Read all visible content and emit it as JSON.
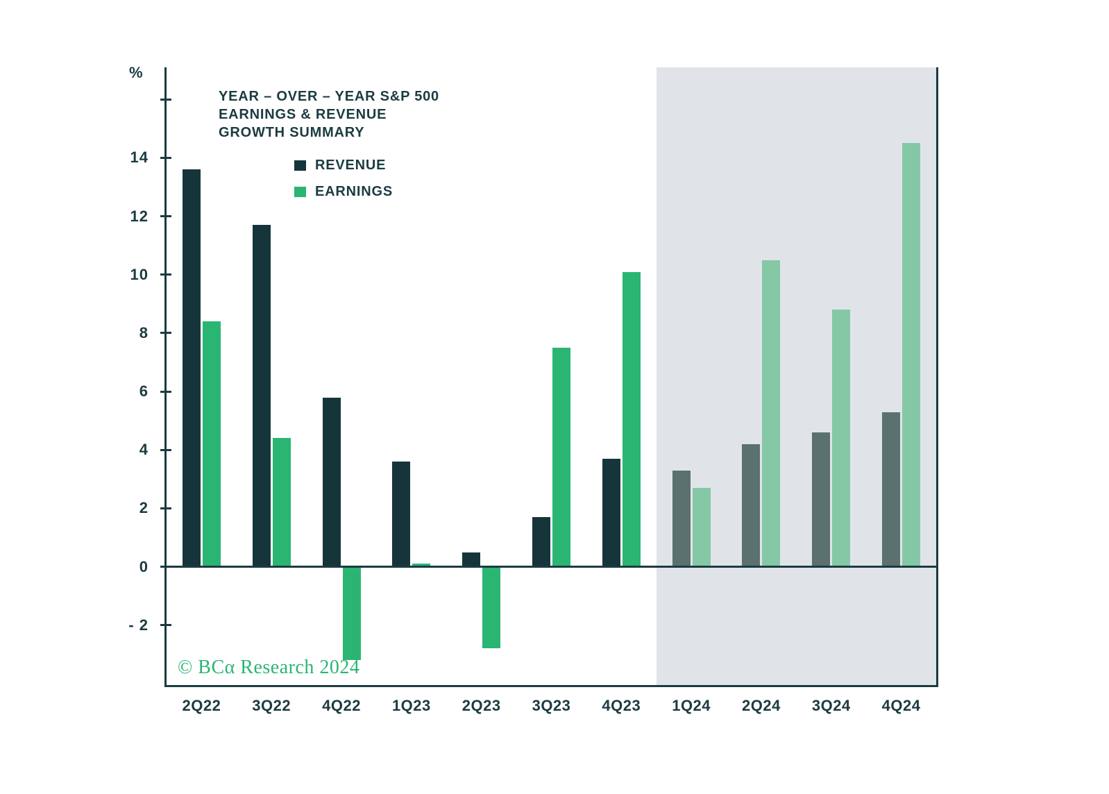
{
  "chart_data": {
    "type": "bar",
    "title_lines": [
      "YEAR – OVER – YEAR  S&P 500",
      "EARNINGS & REVENUE",
      "GROWTH SUMMARY"
    ],
    "ylabel": "%",
    "categories": [
      "2Q22",
      "3Q22",
      "4Q22",
      "1Q23",
      "2Q23",
      "3Q23",
      "4Q23",
      "1Q24",
      "2Q24",
      "3Q24",
      "4Q24"
    ],
    "series": [
      {
        "name": "REVENUE",
        "values": [
          13.6,
          11.7,
          5.8,
          3.6,
          0.5,
          1.7,
          3.7,
          3.3,
          4.2,
          4.6,
          5.3
        ]
      },
      {
        "name": "EARNINGS",
        "values": [
          8.4,
          4.4,
          -3.2,
          0.1,
          -2.8,
          7.5,
          10.1,
          2.7,
          10.5,
          8.8,
          14.5
        ]
      }
    ],
    "forecast_start_category": "1Q24",
    "yticks": [
      {
        "value": 16,
        "label": ""
      },
      {
        "value": 14,
        "label": "14"
      },
      {
        "value": 12,
        "label": "12"
      },
      {
        "value": 10,
        "label": "10"
      },
      {
        "value": 8,
        "label": "8"
      },
      {
        "value": 6,
        "label": "6"
      },
      {
        "value": 4,
        "label": "4"
      },
      {
        "value": 2,
        "label": "2"
      },
      {
        "value": 0,
        "label": "0"
      },
      {
        "value": -2,
        "label": "- 2"
      }
    ],
    "ylim": [
      -4.05,
      17.1
    ],
    "legend_position": "top-left",
    "grid": false,
    "colors": {
      "revenue": "#16353b",
      "earnings": "#2ab573",
      "revenue_forecast": "#5b7170",
      "earnings_forecast": "#85c8a5",
      "forecast_background": "#e0e4e9",
      "axis": "#1b3b41",
      "text": "#1b3b41",
      "copyright": "#2ab573"
    },
    "copyright": "© BCα Research 2024"
  }
}
